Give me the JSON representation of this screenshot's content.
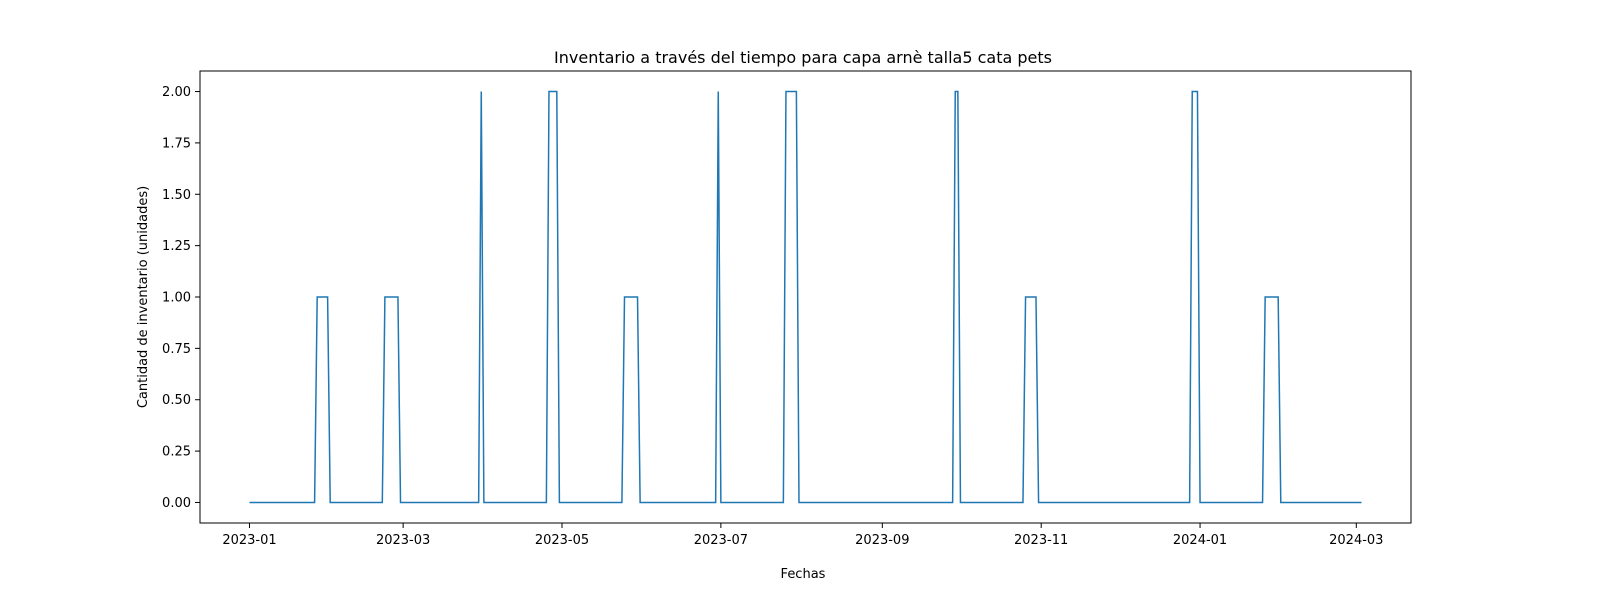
{
  "chart_data": {
    "type": "line",
    "title": "Inventario a través del tiempo para capa arnè talla5 cata pets",
    "xlabel": "Fechas",
    "ylabel": "Cantidad de inventario (unidades)",
    "xlim": [
      "2022-12-13",
      "2024-03-22"
    ],
    "ylim": [
      -0.1,
      2.1
    ],
    "x_ticks": [
      "2023-01",
      "2023-03",
      "2023-05",
      "2023-07",
      "2023-09",
      "2023-11",
      "2024-01",
      "2024-03"
    ],
    "y_ticks": [
      "0.00",
      "0.25",
      "0.50",
      "0.75",
      "1.00",
      "1.25",
      "1.50",
      "1.75",
      "2.00"
    ],
    "grid": false,
    "legend": "none",
    "line_color": "#1f77b4",
    "series": [
      {
        "x": [
          "2023-01-01",
          "2023-01-26",
          "2023-01-27",
          "2023-01-31",
          "2023-02-01",
          "2023-02-21",
          "2023-02-22",
          "2023-02-27",
          "2023-02-28",
          "2023-03-30",
          "2023-03-31",
          "2023-04-01",
          "2023-04-25",
          "2023-04-26",
          "2023-04-29",
          "2023-04-30",
          "2023-05-24",
          "2023-05-25",
          "2023-05-30",
          "2023-05-31",
          "2023-06-29",
          "2023-06-30",
          "2023-07-01",
          "2023-07-25",
          "2023-07-26",
          "2023-07-30",
          "2023-07-31",
          "2023-09-28",
          "2023-09-29",
          "2023-09-30",
          "2023-10-01",
          "2023-10-25",
          "2023-10-26",
          "2023-10-30",
          "2023-10-31",
          "2023-12-28",
          "2023-12-29",
          "2023-12-31",
          "2024-01-01",
          "2024-01-25",
          "2024-01-26",
          "2024-01-31",
          "2024-02-01",
          "2024-03-03"
        ],
        "values": [
          0,
          0,
          1,
          1,
          0,
          0,
          1,
          1,
          0,
          0,
          2,
          0,
          0,
          2,
          2,
          0,
          0,
          1,
          1,
          0,
          0,
          2,
          0,
          0,
          2,
          2,
          0,
          0,
          2,
          2,
          0,
          0,
          1,
          1,
          0,
          0,
          2,
          2,
          0,
          0,
          1,
          1,
          0,
          0
        ]
      }
    ]
  }
}
